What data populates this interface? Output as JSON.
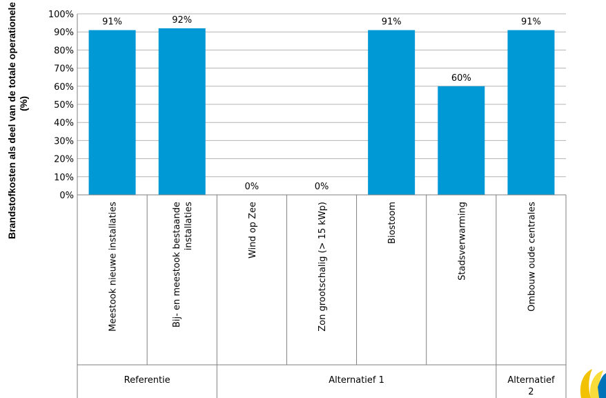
{
  "chart_data": {
    "type": "bar",
    "ylabel": "Brandstofkosten als deel van de totale operationele kosten (%)",
    "ylim": [
      0,
      100
    ],
    "yticks": [
      "0%",
      "10%",
      "20%",
      "30%",
      "40%",
      "50%",
      "60%",
      "70%",
      "80%",
      "90%",
      "100%"
    ],
    "grid": true,
    "categories": [
      [
        "Meestook nieuwe installaties"
      ],
      [
        "Bij- en meestook bestaande",
        "installaties"
      ],
      [
        "Wind op Zee"
      ],
      [
        "Zon grootschalig (> 15 kWp)"
      ],
      [
        "Biostoom"
      ],
      [
        "Stadsverwarming"
      ],
      [
        "Ombouw oude centrales"
      ]
    ],
    "values": [
      91,
      92,
      0,
      0,
      91,
      60,
      91
    ],
    "data_labels": [
      "91%",
      "92%",
      "0%",
      "0%",
      "91%",
      "60%",
      "91%"
    ],
    "groups": [
      {
        "label": [
          "Referentie"
        ],
        "span": 2
      },
      {
        "label": [
          "Alternatief 1"
        ],
        "span": 4
      },
      {
        "label": [
          "Alternatief",
          "2"
        ],
        "span": 1
      }
    ],
    "bar_color": "#0099d6",
    "grid_color": "#b3b3b3"
  }
}
